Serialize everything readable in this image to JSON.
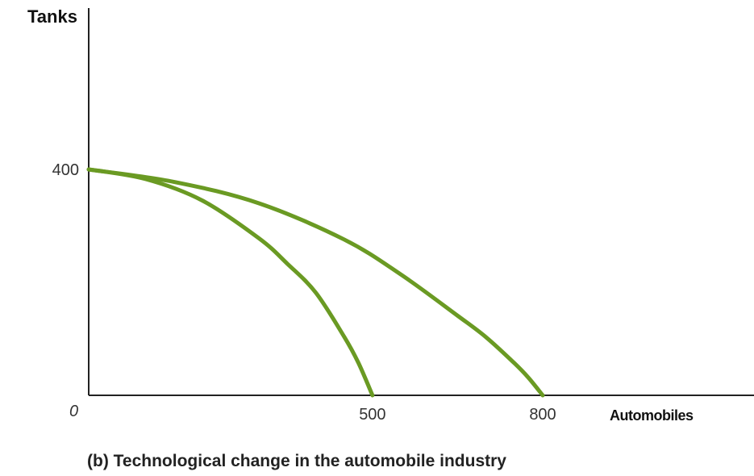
{
  "chart_data": {
    "type": "line",
    "title": "",
    "caption": "(b) Technological change in the automobile industry",
    "xlabel": "Automobiles",
    "ylabel": "Tanks",
    "origin_label": "0",
    "xlim": [
      0,
      900
    ],
    "ylim": [
      0,
      620
    ],
    "x_ticks": [
      500,
      800
    ],
    "y_ticks": [
      400
    ],
    "curve_color": "#6a9a23",
    "series": [
      {
        "x": [
          0,
          100,
          200,
          300,
          350,
          400,
          450,
          475,
          500
        ],
        "y": [
          400,
          383,
          345,
          278,
          233,
          182,
          104,
          58,
          0
        ]
      },
      {
        "x": [
          0,
          150,
          300,
          450,
          550,
          650,
          700,
          750,
          775,
          800
        ],
        "y": [
          400,
          378,
          340,
          276,
          214,
          141,
          103,
          57,
          31,
          0
        ]
      }
    ]
  }
}
